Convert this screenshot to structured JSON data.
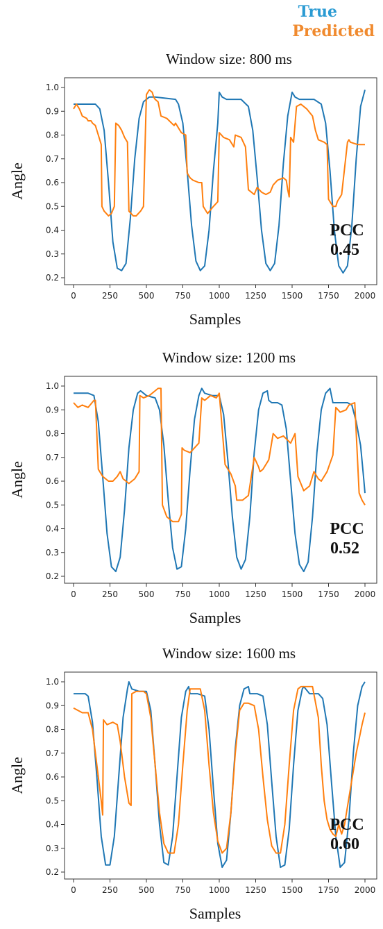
{
  "legend": {
    "true_label": "True",
    "predicted_label": "Predicted",
    "true_color": "#1f77b4",
    "predicted_color": "#ff7f0e"
  },
  "chart_data": [
    {
      "type": "line",
      "title": "Window size: 800 ms",
      "xlabel": "Samples",
      "ylabel": "Angle",
      "xlim": [
        0,
        2000
      ],
      "ylim": [
        0.2,
        1.0
      ],
      "xticks": [
        0,
        250,
        500,
        750,
        1000,
        1250,
        1500,
        1750,
        2000
      ],
      "yticks": [
        0.2,
        0.3,
        0.4,
        0.5,
        0.6,
        0.7,
        0.8,
        0.9,
        1.0
      ],
      "annotation": [
        "PCC",
        "0.45"
      ],
      "series": [
        {
          "name": "True",
          "color": "#1f77b4",
          "x": [
            0,
            150,
            180,
            210,
            240,
            270,
            300,
            330,
            360,
            390,
            420,
            450,
            480,
            520,
            560,
            700,
            720,
            750,
            780,
            810,
            840,
            870,
            900,
            930,
            960,
            990,
            1000,
            1020,
            1050,
            1100,
            1150,
            1200,
            1230,
            1260,
            1290,
            1320,
            1350,
            1380,
            1410,
            1440,
            1470,
            1500,
            1520,
            1550,
            1600,
            1650,
            1700,
            1730,
            1760,
            1790,
            1820,
            1850,
            1880,
            1910,
            1940,
            1970,
            2000
          ],
          "y": [
            0.93,
            0.93,
            0.91,
            0.82,
            0.6,
            0.35,
            0.24,
            0.23,
            0.26,
            0.45,
            0.7,
            0.87,
            0.94,
            0.96,
            0.96,
            0.95,
            0.93,
            0.85,
            0.65,
            0.42,
            0.27,
            0.23,
            0.25,
            0.4,
            0.65,
            0.85,
            0.98,
            0.96,
            0.95,
            0.95,
            0.95,
            0.92,
            0.82,
            0.62,
            0.4,
            0.26,
            0.23,
            0.26,
            0.42,
            0.68,
            0.88,
            0.98,
            0.96,
            0.95,
            0.95,
            0.95,
            0.93,
            0.85,
            0.65,
            0.4,
            0.25,
            0.22,
            0.25,
            0.42,
            0.7,
            0.92,
            0.99
          ]
        },
        {
          "name": "Predicted",
          "color": "#ff7f0e",
          "x": [
            0,
            20,
            40,
            60,
            90,
            100,
            120,
            130,
            150,
            170,
            190,
            195,
            210,
            240,
            260,
            280,
            290,
            310,
            330,
            350,
            370,
            380,
            410,
            430,
            460,
            480,
            500,
            520,
            540,
            550,
            560,
            580,
            600,
            640,
            690,
            700,
            740,
            770,
            780,
            800,
            820,
            860,
            880,
            890,
            920,
            960,
            990,
            1000,
            1030,
            1070,
            1100,
            1110,
            1150,
            1180,
            1200,
            1220,
            1240,
            1260,
            1290,
            1320,
            1350,
            1370,
            1400,
            1440,
            1460,
            1470,
            1480,
            1490,
            1500,
            1510,
            1530,
            1560,
            1600,
            1640,
            1660,
            1680,
            1720,
            1740,
            1750,
            1780,
            1800,
            1810,
            1840,
            1880,
            1890,
            1900,
            1950,
            2000
          ],
          "y": [
            0.91,
            0.93,
            0.91,
            0.88,
            0.87,
            0.86,
            0.86,
            0.85,
            0.84,
            0.8,
            0.76,
            0.5,
            0.48,
            0.46,
            0.47,
            0.5,
            0.85,
            0.84,
            0.82,
            0.79,
            0.77,
            0.48,
            0.46,
            0.46,
            0.48,
            0.5,
            0.97,
            0.99,
            0.98,
            0.96,
            0.95,
            0.94,
            0.88,
            0.87,
            0.84,
            0.85,
            0.81,
            0.8,
            0.64,
            0.62,
            0.61,
            0.6,
            0.6,
            0.5,
            0.47,
            0.5,
            0.52,
            0.81,
            0.79,
            0.78,
            0.75,
            0.8,
            0.79,
            0.75,
            0.57,
            0.56,
            0.55,
            0.58,
            0.56,
            0.55,
            0.56,
            0.59,
            0.61,
            0.62,
            0.61,
            0.57,
            0.54,
            0.79,
            0.78,
            0.77,
            0.92,
            0.93,
            0.91,
            0.88,
            0.82,
            0.78,
            0.77,
            0.76,
            0.53,
            0.5,
            0.5,
            0.52,
            0.55,
            0.77,
            0.78,
            0.77,
            0.76,
            0.76
          ]
        }
      ]
    },
    {
      "type": "line",
      "title": "Window size: 1200 ms",
      "xlabel": "Samples",
      "ylabel": "Angle",
      "xlim": [
        0,
        2000
      ],
      "ylim": [
        0.2,
        1.0
      ],
      "xticks": [
        0,
        250,
        500,
        750,
        1000,
        1250,
        1500,
        1750,
        2000
      ],
      "yticks": [
        0.2,
        0.3,
        0.4,
        0.5,
        0.6,
        0.7,
        0.8,
        0.9,
        1.0
      ],
      "annotation": [
        "PCC",
        "0.52"
      ],
      "series": [
        {
          "name": "True",
          "color": "#1f77b4",
          "x": [
            0,
            100,
            140,
            170,
            200,
            230,
            260,
            290,
            320,
            350,
            380,
            410,
            440,
            460,
            500,
            560,
            590,
            620,
            650,
            680,
            710,
            740,
            770,
            800,
            830,
            860,
            880,
            900,
            950,
            1000,
            1030,
            1060,
            1090,
            1120,
            1150,
            1180,
            1210,
            1240,
            1270,
            1300,
            1330,
            1340,
            1360,
            1400,
            1430,
            1460,
            1490,
            1520,
            1550,
            1580,
            1610,
            1640,
            1670,
            1700,
            1730,
            1760,
            1780,
            1800,
            1850,
            1880,
            1910,
            1940,
            1970,
            1990,
            2000
          ],
          "y": [
            0.97,
            0.97,
            0.96,
            0.85,
            0.62,
            0.38,
            0.24,
            0.22,
            0.28,
            0.48,
            0.74,
            0.9,
            0.97,
            0.98,
            0.96,
            0.95,
            0.9,
            0.75,
            0.52,
            0.32,
            0.23,
            0.24,
            0.4,
            0.65,
            0.86,
            0.96,
            0.99,
            0.97,
            0.96,
            0.96,
            0.88,
            0.68,
            0.45,
            0.28,
            0.23,
            0.27,
            0.45,
            0.72,
            0.9,
            0.97,
            0.98,
            0.94,
            0.93,
            0.93,
            0.92,
            0.82,
            0.6,
            0.38,
            0.25,
            0.22,
            0.26,
            0.45,
            0.72,
            0.9,
            0.97,
            0.99,
            0.93,
            0.93,
            0.93,
            0.93,
            0.92,
            0.85,
            0.75,
            0.62,
            0.55
          ]
        },
        {
          "name": "Predicted",
          "color": "#ff7f0e",
          "x": [
            0,
            30,
            60,
            100,
            140,
            150,
            170,
            200,
            240,
            270,
            300,
            320,
            340,
            380,
            420,
            450,
            455,
            480,
            520,
            560,
            580,
            600,
            610,
            640,
            680,
            720,
            740,
            745,
            760,
            800,
            860,
            880,
            900,
            940,
            980,
            1000,
            1040,
            1080,
            1110,
            1120,
            1160,
            1200,
            1240,
            1270,
            1280,
            1300,
            1340,
            1370,
            1400,
            1440,
            1490,
            1520,
            1540,
            1580,
            1620,
            1650,
            1680,
            1700,
            1740,
            1780,
            1800,
            1830,
            1870,
            1890,
            1930,
            1960,
            1980,
            2000
          ],
          "y": [
            0.93,
            0.91,
            0.92,
            0.91,
            0.94,
            0.94,
            0.65,
            0.62,
            0.6,
            0.6,
            0.62,
            0.64,
            0.61,
            0.59,
            0.61,
            0.64,
            0.96,
            0.95,
            0.96,
            0.98,
            0.99,
            0.99,
            0.5,
            0.45,
            0.43,
            0.43,
            0.46,
            0.74,
            0.73,
            0.72,
            0.76,
            0.95,
            0.94,
            0.96,
            0.95,
            0.97,
            0.67,
            0.63,
            0.58,
            0.52,
            0.52,
            0.54,
            0.7,
            0.66,
            0.64,
            0.65,
            0.69,
            0.8,
            0.78,
            0.79,
            0.76,
            0.8,
            0.62,
            0.56,
            0.58,
            0.64,
            0.61,
            0.6,
            0.64,
            0.71,
            0.91,
            0.89,
            0.9,
            0.92,
            0.93,
            0.55,
            0.52,
            0.5
          ]
        }
      ]
    },
    {
      "type": "line",
      "title": "Window size: 1600 ms",
      "xlabel": "Samples",
      "ylabel": "Angle",
      "xlim": [
        0,
        2000
      ],
      "ylim": [
        0.2,
        1.0
      ],
      "xticks": [
        0,
        250,
        500,
        750,
        1000,
        1250,
        1500,
        1750,
        2000
      ],
      "yticks": [
        0.2,
        0.3,
        0.4,
        0.5,
        0.6,
        0.7,
        0.8,
        0.9,
        1.0
      ],
      "annotation": [
        "PCC",
        "0.60"
      ],
      "series": [
        {
          "name": "True",
          "color": "#1f77b4",
          "x": [
            0,
            80,
            100,
            130,
            160,
            190,
            220,
            250,
            280,
            310,
            340,
            370,
            380,
            400,
            450,
            500,
            530,
            560,
            590,
            620,
            650,
            680,
            710,
            740,
            770,
            790,
            800,
            850,
            900,
            930,
            960,
            990,
            1020,
            1050,
            1080,
            1110,
            1140,
            1170,
            1200,
            1210,
            1260,
            1300,
            1330,
            1360,
            1390,
            1420,
            1450,
            1480,
            1510,
            1540,
            1570,
            1580,
            1620,
            1680,
            1710,
            1740,
            1770,
            1800,
            1830,
            1860,
            1890,
            1920,
            1950,
            1980,
            2000
          ],
          "y": [
            0.95,
            0.95,
            0.94,
            0.83,
            0.6,
            0.35,
            0.23,
            0.23,
            0.35,
            0.6,
            0.85,
            0.97,
            1.0,
            0.97,
            0.96,
            0.96,
            0.88,
            0.65,
            0.4,
            0.24,
            0.23,
            0.35,
            0.6,
            0.85,
            0.96,
            0.98,
            0.95,
            0.95,
            0.94,
            0.8,
            0.55,
            0.32,
            0.22,
            0.25,
            0.45,
            0.72,
            0.9,
            0.97,
            0.98,
            0.95,
            0.95,
            0.94,
            0.82,
            0.58,
            0.35,
            0.22,
            0.23,
            0.38,
            0.65,
            0.88,
            0.97,
            0.98,
            0.95,
            0.95,
            0.93,
            0.82,
            0.58,
            0.35,
            0.22,
            0.24,
            0.42,
            0.7,
            0.9,
            0.98,
            1.0
          ]
        },
        {
          "name": "Predicted",
          "color": "#ff7f0e",
          "x": [
            0,
            30,
            60,
            100,
            130,
            160,
            190,
            200,
            205,
            230,
            270,
            300,
            320,
            350,
            380,
            395,
            400,
            430,
            480,
            500,
            530,
            560,
            590,
            620,
            650,
            690,
            720,
            750,
            780,
            800,
            850,
            870,
            900,
            930,
            960,
            990,
            1020,
            1050,
            1080,
            1110,
            1140,
            1170,
            1200,
            1240,
            1270,
            1300,
            1330,
            1360,
            1390,
            1420,
            1450,
            1480,
            1510,
            1540,
            1560,
            1600,
            1640,
            1680,
            1700,
            1720,
            1740,
            1760,
            1780,
            1800,
            1820,
            1840,
            1860,
            1900,
            1940,
            1980,
            2000
          ],
          "y": [
            0.89,
            0.88,
            0.87,
            0.87,
            0.8,
            0.65,
            0.5,
            0.44,
            0.84,
            0.82,
            0.83,
            0.82,
            0.75,
            0.6,
            0.49,
            0.48,
            0.95,
            0.96,
            0.96,
            0.95,
            0.85,
            0.65,
            0.45,
            0.32,
            0.28,
            0.28,
            0.4,
            0.65,
            0.88,
            0.97,
            0.97,
            0.97,
            0.88,
            0.65,
            0.45,
            0.33,
            0.28,
            0.3,
            0.45,
            0.7,
            0.88,
            0.91,
            0.91,
            0.9,
            0.8,
            0.6,
            0.42,
            0.31,
            0.28,
            0.28,
            0.4,
            0.65,
            0.88,
            0.97,
            0.98,
            0.98,
            0.98,
            0.85,
            0.65,
            0.5,
            0.42,
            0.38,
            0.36,
            0.35,
            0.4,
            0.36,
            0.4,
            0.55,
            0.7,
            0.82,
            0.87
          ]
        }
      ]
    }
  ]
}
